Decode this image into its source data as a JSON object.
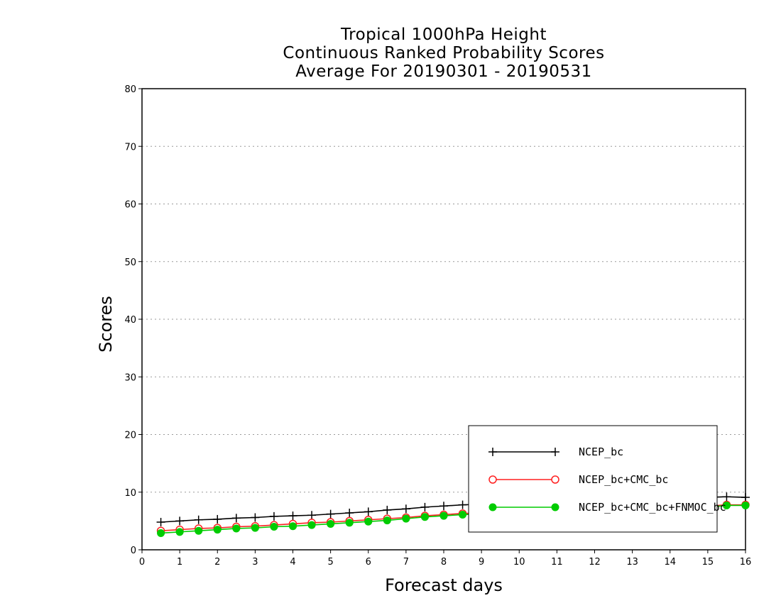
{
  "chart_data": {
    "type": "line",
    "title_lines": [
      "Tropical 1000hPa Height",
      "Continuous Ranked Probability Scores",
      "Average For 20190301 - 20190531"
    ],
    "xlabel": "Forecast days",
    "ylabel": "Scores",
    "xlim": [
      0,
      16
    ],
    "ylim": [
      0,
      80
    ],
    "xticks": [
      0,
      1,
      2,
      3,
      4,
      5,
      6,
      7,
      8,
      9,
      10,
      11,
      12,
      13,
      14,
      15,
      16
    ],
    "yticks": [
      0,
      10,
      20,
      30,
      40,
      50,
      60,
      70,
      80
    ],
    "grid": "horizontal dotted",
    "legend_position": "bottom-right",
    "x": [
      0.5,
      1,
      1.5,
      2,
      2.5,
      3,
      3.5,
      4,
      4.5,
      5,
      5.5,
      6,
      6.5,
      7,
      7.5,
      8,
      8.5,
      9,
      9.5,
      10,
      10.5,
      11,
      11.5,
      12,
      12.5,
      13,
      13.5,
      14,
      14.5,
      15,
      15.5,
      16
    ],
    "series": [
      {
        "name": "NCEP_bc",
        "color": "#000000",
        "marker": "plus",
        "values": [
          4.8,
          5.0,
          5.2,
          5.3,
          5.5,
          5.6,
          5.8,
          5.9,
          6.0,
          6.2,
          6.4,
          6.6,
          6.9,
          7.1,
          7.4,
          7.6,
          7.8,
          7.9,
          8.0,
          8.1,
          8.2,
          8.3,
          8.4,
          8.5,
          8.6,
          8.7,
          8.8,
          8.9,
          9.0,
          9.1,
          9.2,
          9.1
        ]
      },
      {
        "name": "NCEP_bc+CMC_bc",
        "color": "#ff2020",
        "marker": "open-circle",
        "values": [
          3.3,
          3.5,
          3.7,
          3.8,
          4.0,
          4.1,
          4.3,
          4.5,
          4.7,
          4.8,
          5.0,
          5.2,
          5.4,
          5.6,
          5.9,
          6.1,
          6.3,
          6.4,
          6.5,
          6.6,
          6.7,
          6.8,
          6.9,
          7.0,
          7.1,
          7.2,
          7.3,
          7.4,
          7.5,
          7.6,
          7.8,
          7.8
        ]
      },
      {
        "name": "NCEP_bc+CMC_bc+FNMOC_bc",
        "color": "#00cc00",
        "marker": "filled-circle",
        "values": [
          2.9,
          3.1,
          3.3,
          3.5,
          3.7,
          3.8,
          4.0,
          4.1,
          4.3,
          4.5,
          4.7,
          4.9,
          5.1,
          5.4,
          5.7,
          5.9,
          6.1,
          6.2,
          6.3,
          6.4,
          6.5,
          6.6,
          6.7,
          6.8,
          6.9,
          7.0,
          7.1,
          7.2,
          7.3,
          7.4,
          7.7,
          7.7
        ]
      }
    ]
  }
}
